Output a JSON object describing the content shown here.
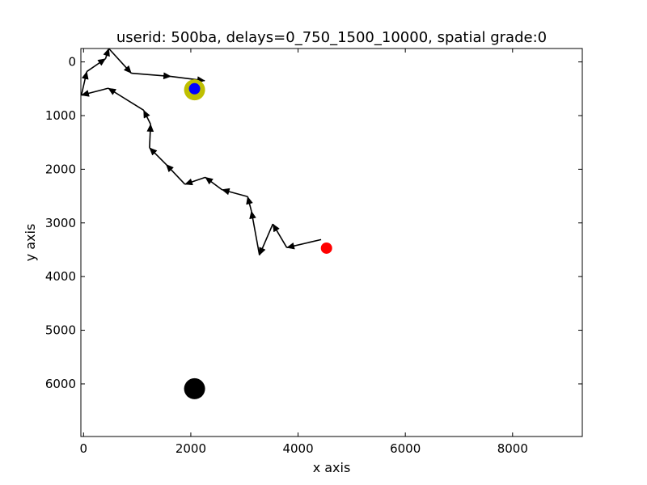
{
  "chart_data": {
    "type": "line",
    "title": "userid: 500ba, delays=0_750_1500_10000, spatial grade:0",
    "xlabel": "x axis",
    "ylabel": "y axis",
    "xlim": [
      -50,
      9300
    ],
    "ylim": [
      6980,
      -250
    ],
    "y_inverted": true,
    "grid": false,
    "x_ticks": [
      0,
      2000,
      4000,
      6000,
      8000
    ],
    "y_ticks": [
      0,
      1000,
      2000,
      3000,
      4000,
      5000,
      6000
    ],
    "series": [
      {
        "style": "arrows",
        "color": "#000000",
        "path": [
          {
            "x": 4430,
            "y": 3310
          },
          {
            "x": 3790,
            "y": 3460
          },
          {
            "x": 3530,
            "y": 3020
          },
          {
            "x": 3280,
            "y": 3600
          },
          {
            "x": 3130,
            "y": 2780
          },
          {
            "x": 3060,
            "y": 2510
          },
          {
            "x": 2580,
            "y": 2380
          },
          {
            "x": 2270,
            "y": 2150
          },
          {
            "x": 1890,
            "y": 2280
          },
          {
            "x": 1540,
            "y": 1910
          },
          {
            "x": 1230,
            "y": 1600
          },
          {
            "x": 1250,
            "y": 1160
          },
          {
            "x": 1120,
            "y": 900
          },
          {
            "x": 460,
            "y": 490
          },
          {
            "x": -40,
            "y": 620
          },
          {
            "x": 60,
            "y": 180
          },
          {
            "x": 410,
            "y": -60
          },
          {
            "x": 470,
            "y": -250
          },
          {
            "x": 890,
            "y": 210
          },
          {
            "x": 1630,
            "y": 270
          },
          {
            "x": 2260,
            "y": 350
          }
        ]
      }
    ],
    "markers": [
      {
        "x": 2070,
        "y": 520,
        "color": "#bfbf00",
        "size": "large"
      },
      {
        "x": 2070,
        "y": 500,
        "color": "#0000ff",
        "size": "small"
      },
      {
        "x": 4530,
        "y": 3470,
        "color": "#ff0000",
        "size": "small"
      },
      {
        "x": 2070,
        "y": 6090,
        "color": "#000000",
        "size": "large"
      }
    ]
  }
}
